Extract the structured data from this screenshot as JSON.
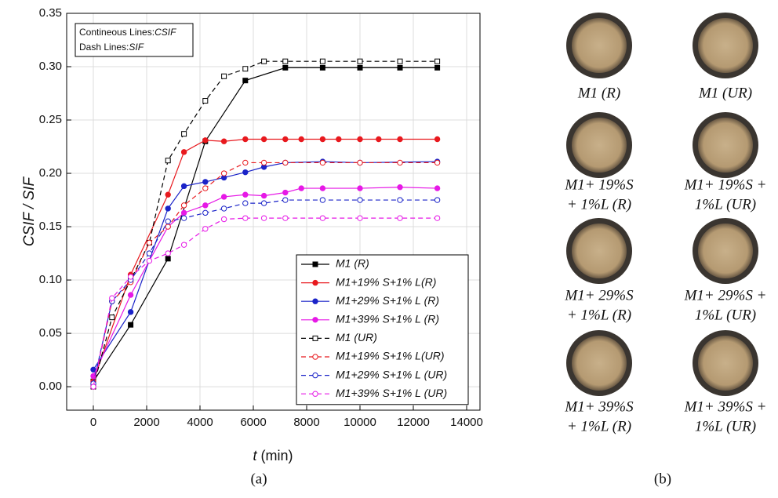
{
  "chart_data": {
    "type": "line",
    "panel_label": "(a)",
    "ylabel": "CSIF / SIF",
    "xlabel": {
      "italic": "t",
      "rest": "(min)"
    },
    "annotation": [
      {
        "text": "Contineous Lines:",
        "italic": "CSIF"
      },
      {
        "text": "Dash Lines:",
        "italic": "SIF"
      }
    ],
    "xlim": [
      -1000,
      14500
    ],
    "ylim": [
      -0.022,
      0.35
    ],
    "xticks": [
      0,
      2000,
      4000,
      6000,
      8000,
      10000,
      12000,
      14000
    ],
    "yticks": [
      {
        "value": 0,
        "label": "0.00"
      },
      0.05,
      {
        "value": 0.1,
        "label": "0.10"
      },
      0.15,
      {
        "value": 0.2,
        "label": "0.20"
      },
      0.25,
      {
        "value": 0.3,
        "label": "0.30"
      },
      0.35
    ],
    "grid": true,
    "legend": "lower right",
    "series": [
      {
        "name": "M1 (R)",
        "color": "#000000",
        "marker": "square",
        "filled": true,
        "dashed": false,
        "x": [
          0,
          1400,
          2800,
          4200,
          5700,
          7200,
          8600,
          10000,
          11500,
          12900
        ],
        "values": [
          0.005,
          0.058,
          0.12,
          0.23,
          0.287,
          0.299,
          0.299,
          0.299,
          0.299,
          0.299
        ]
      },
      {
        "name": "M1+19% S+1% L(R)",
        "color": "#e8191e",
        "marker": "circle",
        "filled": true,
        "dashed": false,
        "x": [
          0,
          1400,
          2800,
          3400,
          4200,
          4900,
          5700,
          6400,
          7200,
          7800,
          8600,
          9200,
          10000,
          10700,
          11500,
          12900
        ],
        "values": [
          0.005,
          0.105,
          0.18,
          0.22,
          0.231,
          0.23,
          0.232,
          0.232,
          0.232,
          0.232,
          0.232,
          0.232,
          0.232,
          0.232,
          0.232,
          0.232
        ]
      },
      {
        "name": "M1+29% S+1% L (R)",
        "color": "#1a23c8",
        "marker": "circle",
        "filled": true,
        "dashed": false,
        "x": [
          0,
          1400,
          2800,
          3400,
          4200,
          4900,
          5700,
          6400,
          7200,
          8600,
          10000,
          12900
        ],
        "values": [
          0.016,
          0.07,
          0.167,
          0.188,
          0.192,
          0.196,
          0.201,
          0.206,
          0.21,
          0.211,
          0.21,
          0.211
        ]
      },
      {
        "name": "M1+39% S+1% L (R)",
        "color": "#e619e6",
        "marker": "circle",
        "filled": true,
        "dashed": false,
        "x": [
          0,
          1400,
          2800,
          3400,
          4200,
          4900,
          5700,
          6400,
          7200,
          7800,
          8600,
          10000,
          11500,
          12900
        ],
        "values": [
          0.01,
          0.086,
          0.15,
          0.163,
          0.17,
          0.178,
          0.18,
          0.179,
          0.182,
          0.186,
          0.186,
          0.186,
          0.187,
          0.186
        ]
      },
      {
        "name": "M1 (UR)",
        "color": "#000000",
        "marker": "square",
        "filled": false,
        "dashed": true,
        "x": [
          0,
          700,
          1400,
          2100,
          2800,
          3400,
          4200,
          4900,
          5700,
          6400,
          7200,
          8600,
          10000,
          11500,
          12900
        ],
        "values": [
          0.0,
          0.065,
          0.1,
          0.135,
          0.212,
          0.237,
          0.268,
          0.291,
          0.298,
          0.305,
          0.305,
          0.305,
          0.305,
          0.305,
          0.305
        ]
      },
      {
        "name": "M1+19% S+1% L(UR)",
        "color": "#e8191e",
        "marker": "circle",
        "filled": false,
        "dashed": true,
        "x": [
          0,
          700,
          1400,
          2100,
          2800,
          3400,
          4200,
          4900,
          5700,
          6400,
          7200,
          8600,
          10000,
          11500,
          12900
        ],
        "values": [
          0.0,
          0.08,
          0.098,
          0.135,
          0.15,
          0.17,
          0.186,
          0.2,
          0.21,
          0.21,
          0.21,
          0.21,
          0.21,
          0.21,
          0.21
        ]
      },
      {
        "name": "M1+29% S+1% L (UR)",
        "color": "#1a23c8",
        "marker": "circle",
        "filled": false,
        "dashed": true,
        "x": [
          0,
          700,
          1400,
          2100,
          2800,
          3400,
          4200,
          4900,
          5700,
          6400,
          7200,
          8600,
          10000,
          11500,
          12900
        ],
        "values": [
          0.003,
          0.08,
          0.1,
          0.125,
          0.155,
          0.158,
          0.163,
          0.167,
          0.172,
          0.172,
          0.175,
          0.175,
          0.175,
          0.175,
          0.175
        ]
      },
      {
        "name": "M1+39% S+1% L (UR)",
        "color": "#e619e6",
        "marker": "circle",
        "filled": false,
        "dashed": true,
        "x": [
          0,
          700,
          1400,
          2100,
          2800,
          3400,
          4200,
          4900,
          5700,
          6400,
          7200,
          8600,
          10000,
          11500,
          12900
        ],
        "values": [
          0.0,
          0.083,
          0.103,
          0.118,
          0.125,
          0.133,
          0.148,
          0.157,
          0.158,
          0.158,
          0.158,
          0.158,
          0.158,
          0.158,
          0.158
        ]
      }
    ]
  },
  "photos": {
    "panel_label": "(b)",
    "captions": [
      [
        "M1 (R)"
      ],
      [
        "M1 (UR)"
      ],
      [
        "M1+ 19%S",
        "+ 1%L (R)"
      ],
      [
        "M1+ 19%S +",
        "1%L (UR)"
      ],
      [
        "M1+ 29%S",
        "+ 1%L (R)"
      ],
      [
        "M1+ 29%S +",
        "1%L (UR)"
      ],
      [
        "M1+ 39%S",
        "+ 1%L (R)"
      ],
      [
        "M1+ 39%S +",
        "1%L (UR)"
      ]
    ]
  }
}
